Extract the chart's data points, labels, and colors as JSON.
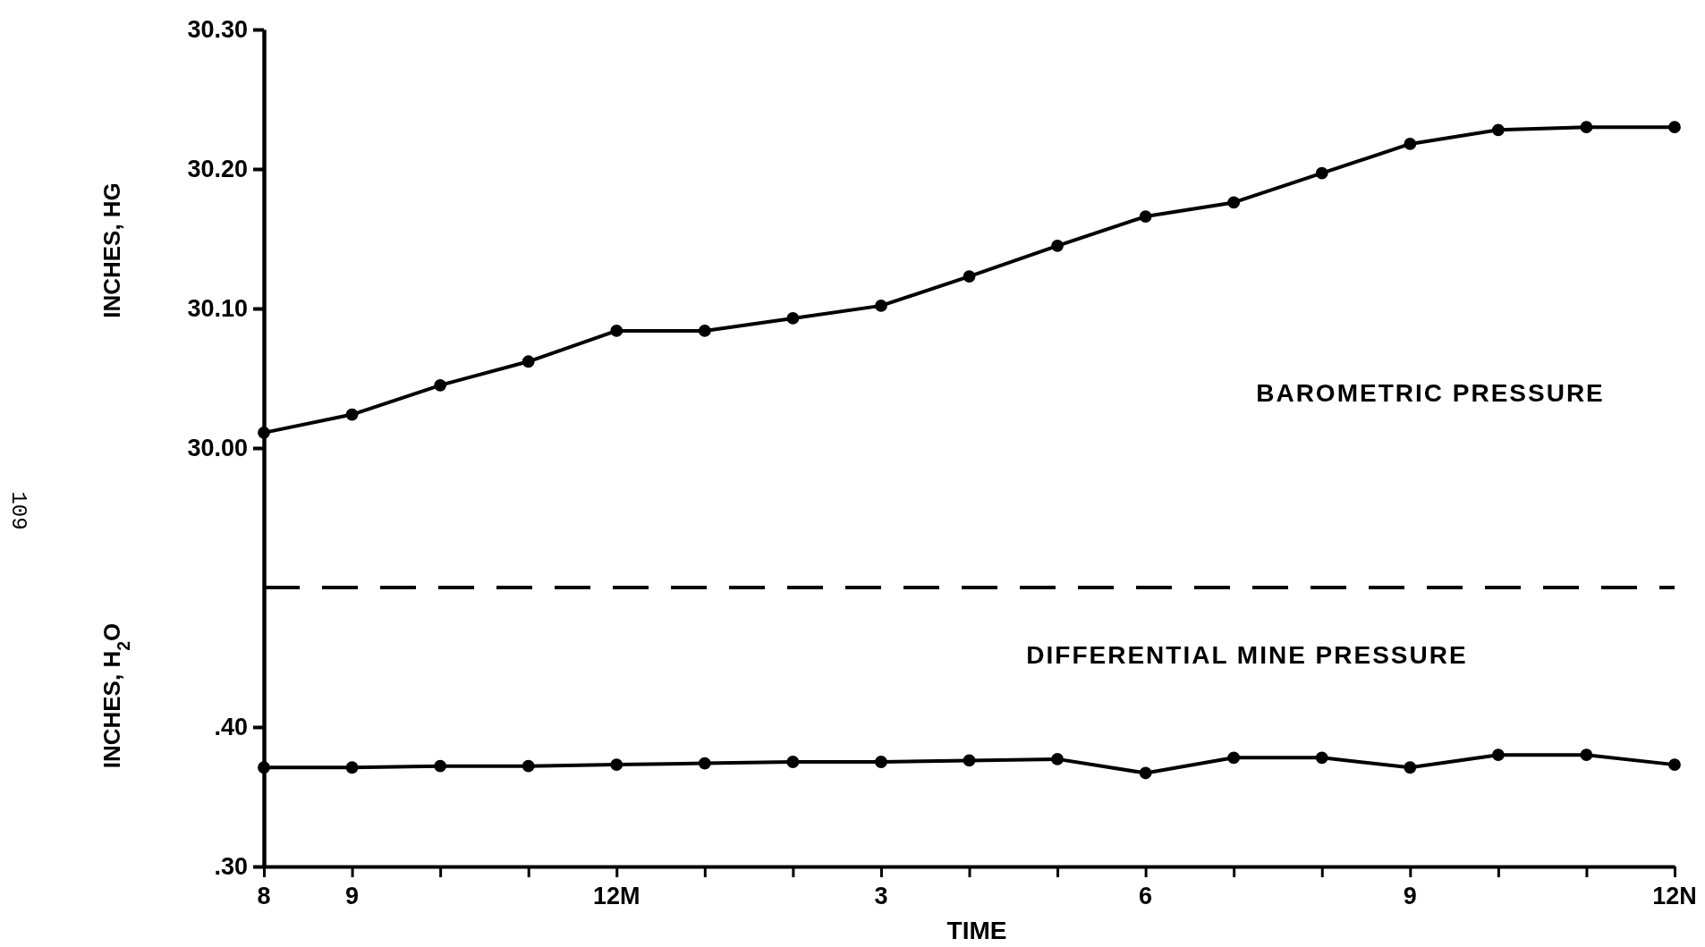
{
  "chart_data": {
    "type": "line",
    "ylabel": "INCHES, HG",
    "xlabel": "TIME",
    "categories": [
      "8",
      "9",
      null,
      null,
      "12M",
      null,
      null,
      "3",
      null,
      null,
      "6",
      null,
      null,
      "9",
      null,
      null,
      "12N"
    ],
    "ylim": [
      29.7,
      30.3
    ],
    "yticks": [
      {
        "value": 30.0,
        "label": "30.00"
      },
      {
        "value": 30.1,
        "label": "30.10"
      },
      {
        "value": 30.2,
        "label": "30.20"
      },
      {
        "value": 30.3,
        "label": "30.30"
      }
    ],
    "y2lim": [
      0.3,
      0.9
    ],
    "y2ticks": [
      {
        "value": 0.3,
        "label": ".30"
      },
      {
        "value": 0.4,
        "label": ".40"
      }
    ],
    "marker": "circle",
    "line_style": "solid",
    "annotations": [
      "109",
      "BAROMETRIC PRESSURE",
      "DIFFERENTIAL MINE PRESSURE",
      "INCHES, H$_{2}$O"
    ],
    "ref_lines": [
      {
        "axis": "y",
        "value": 29.9,
        "line_style": "dashed",
        "color": "#000000"
      }
    ],
    "series": [
      {
        "color": "#000000",
        "values": [
          30.011,
          30.024,
          30.045,
          30.062,
          30.084,
          30.084,
          30.093,
          30.102,
          30.123,
          30.145,
          30.166,
          30.176,
          30.197,
          30.218,
          30.228,
          30.23,
          30.23
        ]
      },
      {
        "color": "#000000",
        "axis": "y2",
        "values": [
          0.371,
          0.371,
          0.372,
          0.372,
          0.373,
          0.374,
          0.375,
          0.375,
          0.376,
          0.377,
          0.367,
          0.378,
          0.378,
          0.371,
          0.38,
          0.38,
          0.373
        ]
      }
    ]
  }
}
